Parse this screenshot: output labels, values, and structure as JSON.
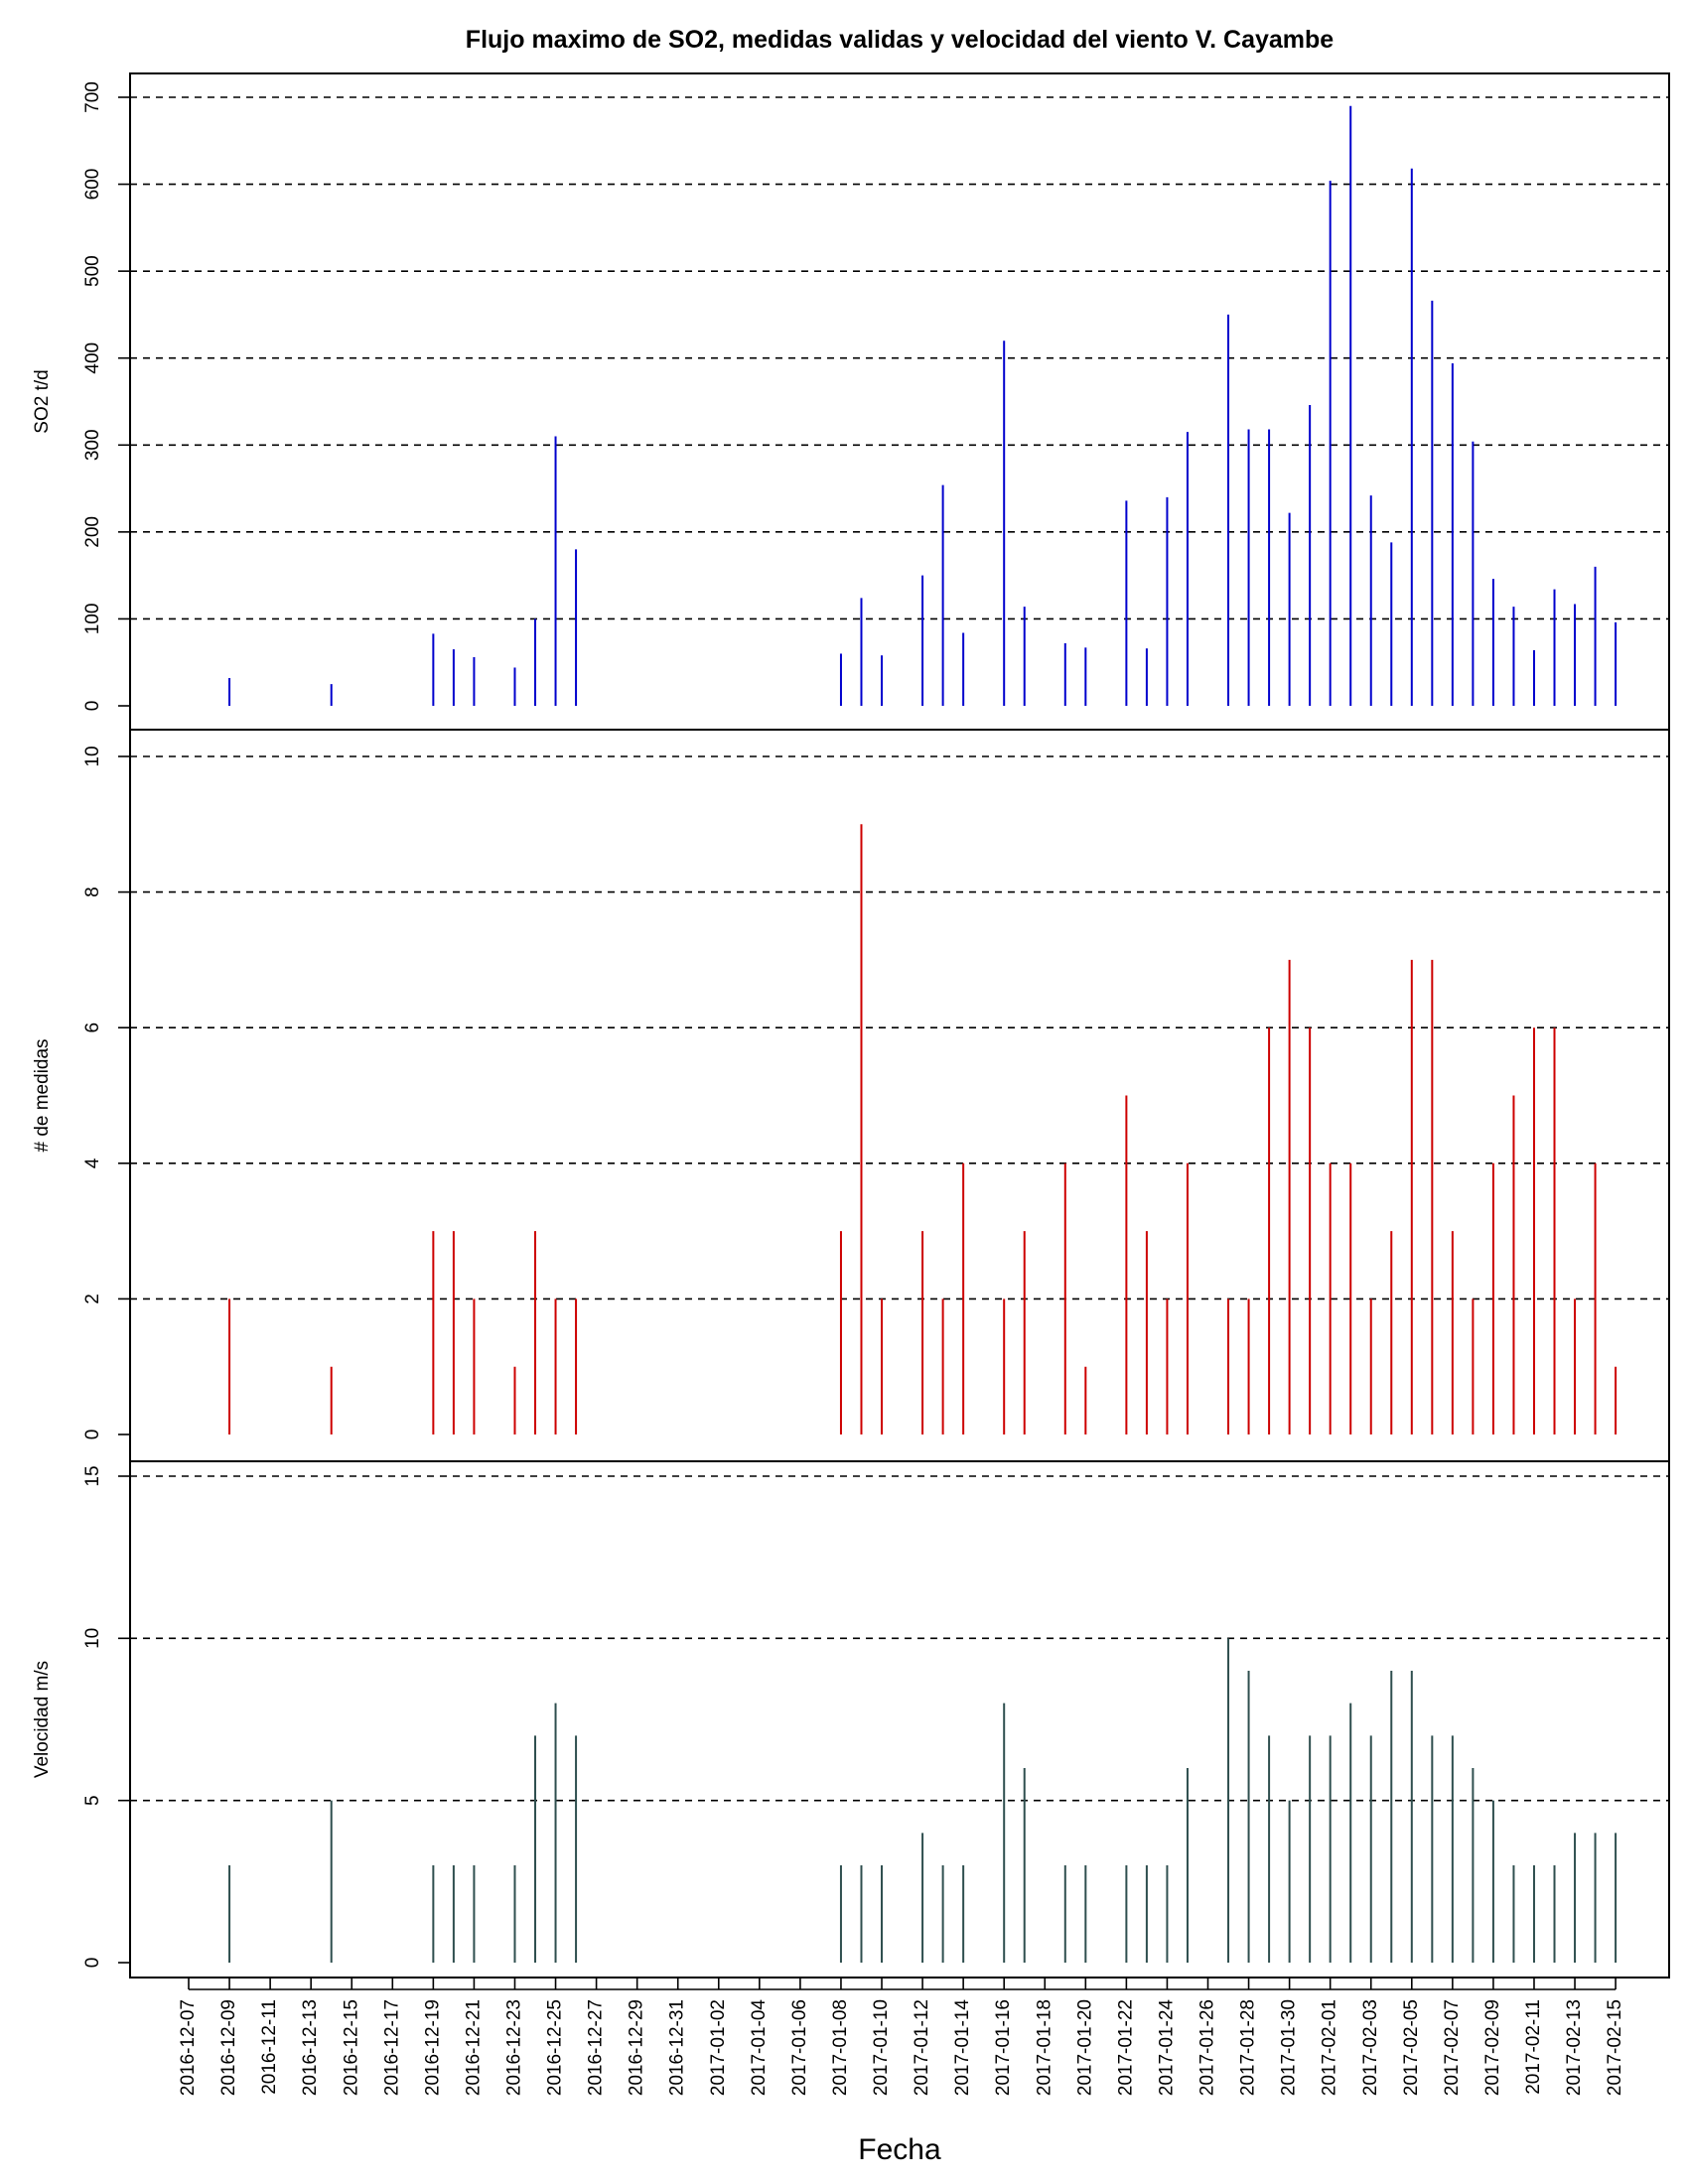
{
  "title": "Flujo maximo de SO2, medidas validas y velocidad del viento V. Cayambe",
  "xlabel": "Fecha",
  "x_ticks": [
    "2016-12-07",
    "2016-12-09",
    "2016-12-11",
    "2016-12-13",
    "2016-12-15",
    "2016-12-17",
    "2016-12-19",
    "2016-12-21",
    "2016-12-23",
    "2016-12-25",
    "2016-12-27",
    "2016-12-29",
    "2016-12-31",
    "2017-01-02",
    "2017-01-04",
    "2017-01-06",
    "2017-01-08",
    "2017-01-10",
    "2017-01-12",
    "2017-01-14",
    "2017-01-16",
    "2017-01-18",
    "2017-01-20",
    "2017-01-22",
    "2017-01-24",
    "2017-01-26",
    "2017-01-28",
    "2017-01-30",
    "2017-02-01",
    "2017-02-03",
    "2017-02-05",
    "2017-02-07",
    "2017-02-09",
    "2017-02-11",
    "2017-02-13",
    "2017-02-15"
  ],
  "chart_data": [
    {
      "type": "bar",
      "panel": "top",
      "ylabel": "SO2 t/d",
      "ylim": [
        0,
        700
      ],
      "yticks": [
        0,
        100,
        200,
        300,
        400,
        500,
        600,
        700
      ],
      "grid": true,
      "color": "#0000cd",
      "x": [
        "2016-12-09",
        "2016-12-14",
        "2016-12-19",
        "2016-12-20",
        "2016-12-21",
        "2016-12-23",
        "2016-12-24",
        "2016-12-25",
        "2016-12-26",
        "2017-01-08",
        "2017-01-09",
        "2017-01-10",
        "2017-01-12",
        "2017-01-13",
        "2017-01-14",
        "2017-01-16",
        "2017-01-17",
        "2017-01-19",
        "2017-01-20",
        "2017-01-22",
        "2017-01-23",
        "2017-01-24",
        "2017-01-25",
        "2017-01-27",
        "2017-01-28",
        "2017-01-29",
        "2017-01-30",
        "2017-01-31",
        "2017-02-01",
        "2017-02-02",
        "2017-02-03",
        "2017-02-04",
        "2017-02-05",
        "2017-02-06",
        "2017-02-07",
        "2017-02-08",
        "2017-02-09",
        "2017-02-10",
        "2017-02-11",
        "2017-02-12",
        "2017-02-13",
        "2017-02-14",
        "2017-02-15"
      ],
      "values": [
        32,
        25,
        83,
        65,
        56,
        44,
        100,
        310,
        180,
        60,
        124,
        58,
        150,
        254,
        84,
        420,
        114,
        72,
        67,
        236,
        66,
        240,
        315,
        450,
        318,
        318,
        222,
        346,
        604,
        690,
        242,
        188,
        618,
        466,
        394,
        304,
        146,
        114,
        64,
        134,
        117,
        160,
        96
      ]
    },
    {
      "type": "bar",
      "panel": "middle",
      "ylabel": "# de medidas",
      "ylim": [
        0,
        10
      ],
      "yticks": [
        0,
        2,
        4,
        6,
        8,
        10
      ],
      "grid": true,
      "color": "#cd0000",
      "x": [
        "2016-12-09",
        "2016-12-14",
        "2016-12-19",
        "2016-12-20",
        "2016-12-21",
        "2016-12-23",
        "2016-12-24",
        "2016-12-25",
        "2016-12-26",
        "2017-01-08",
        "2017-01-09",
        "2017-01-10",
        "2017-01-12",
        "2017-01-13",
        "2017-01-14",
        "2017-01-16",
        "2017-01-17",
        "2017-01-19",
        "2017-01-20",
        "2017-01-22",
        "2017-01-23",
        "2017-01-24",
        "2017-01-25",
        "2017-01-27",
        "2017-01-28",
        "2017-01-29",
        "2017-01-30",
        "2017-01-31",
        "2017-02-01",
        "2017-02-02",
        "2017-02-03",
        "2017-02-04",
        "2017-02-05",
        "2017-02-06",
        "2017-02-07",
        "2017-02-08",
        "2017-02-09",
        "2017-02-10",
        "2017-02-11",
        "2017-02-12",
        "2017-02-13",
        "2017-02-14",
        "2017-02-15"
      ],
      "values": [
        2,
        1,
        3,
        3,
        2,
        1,
        3,
        2,
        2,
        3,
        9,
        2,
        3,
        2,
        4,
        2,
        3,
        4,
        1,
        5,
        3,
        2,
        4,
        2,
        2,
        6,
        7,
        6,
        4,
        4,
        2,
        3,
        7,
        7,
        3,
        2,
        4,
        5,
        6,
        6,
        2,
        4,
        1
      ]
    },
    {
      "type": "bar",
      "panel": "bottom",
      "ylabel": "Velocidad m/s",
      "ylim": [
        0,
        15
      ],
      "yticks": [
        0,
        5,
        10,
        15
      ],
      "grid": true,
      "color": "#2f4f4f",
      "x": [
        "2016-12-09",
        "2016-12-14",
        "2016-12-19",
        "2016-12-20",
        "2016-12-21",
        "2016-12-23",
        "2016-12-24",
        "2016-12-25",
        "2016-12-26",
        "2017-01-08",
        "2017-01-09",
        "2017-01-10",
        "2017-01-12",
        "2017-01-13",
        "2017-01-14",
        "2017-01-16",
        "2017-01-17",
        "2017-01-19",
        "2017-01-20",
        "2017-01-22",
        "2017-01-23",
        "2017-01-24",
        "2017-01-25",
        "2017-01-27",
        "2017-01-28",
        "2017-01-29",
        "2017-01-30",
        "2017-01-31",
        "2017-02-01",
        "2017-02-02",
        "2017-02-03",
        "2017-02-04",
        "2017-02-05",
        "2017-02-06",
        "2017-02-07",
        "2017-02-08",
        "2017-02-09",
        "2017-02-10",
        "2017-02-11",
        "2017-02-12",
        "2017-02-13",
        "2017-02-14",
        "2017-02-15"
      ],
      "values": [
        3,
        5,
        3,
        3,
        3,
        3,
        7,
        8,
        7,
        3,
        3,
        3,
        4,
        3,
        3,
        8,
        6,
        3,
        3,
        3,
        3,
        3,
        6,
        10,
        9,
        7,
        5,
        7,
        7,
        8,
        7,
        9,
        9,
        7,
        7,
        6,
        5,
        3,
        3,
        3,
        4,
        4,
        4
      ]
    }
  ]
}
